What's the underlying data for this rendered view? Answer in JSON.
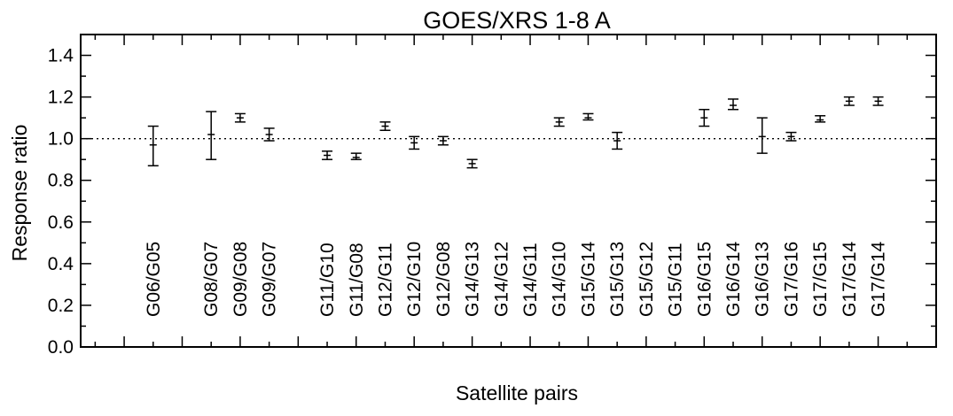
{
  "chart_data": {
    "type": "scatter",
    "title": "GOES/XRS 1-8 A",
    "xlabel": "Satellite pairs",
    "ylabel": "Response ratio",
    "ylim": [
      0.0,
      1.5
    ],
    "yticks": [
      "0.0",
      "0.2",
      "0.4",
      "0.6",
      "0.8",
      "1.0",
      "1.2",
      "1.4"
    ],
    "reference_line": 1.0,
    "grid": false,
    "categories": [
      "G06/G05",
      "G08/G07",
      "G09/G08",
      "G09/G07",
      "G11/G10",
      "G11/G08",
      "G12/G11",
      "G12/G10",
      "G12/G08",
      "G14/G13",
      "G14/G12",
      "G14/G11",
      "G14/G10",
      "G15/G14",
      "G15/G13",
      "G15/G12",
      "G15/G11",
      "G16/G15",
      "G16/G14",
      "G16/G13",
      "G17/G16",
      "G17/G15",
      "G17/G14",
      "G17/G14"
    ],
    "x_slot": [
      1,
      3,
      4,
      5,
      7,
      8,
      9,
      10,
      11,
      12,
      13,
      14,
      15,
      16,
      17,
      18,
      19,
      20,
      21,
      22,
      23,
      24,
      25,
      26
    ],
    "x_range": [
      -1.5,
      28
    ],
    "values": [
      0.97,
      1.02,
      1.1,
      1.02,
      0.92,
      0.91,
      1.06,
      0.98,
      0.99,
      0.88,
      null,
      null,
      1.08,
      1.1,
      0.99,
      null,
      null,
      1.1,
      1.16,
      1.01,
      1.01,
      1.09,
      1.18,
      1.18
    ],
    "error_low": [
      0.87,
      0.9,
      1.08,
      0.99,
      0.9,
      0.9,
      1.04,
      0.95,
      0.97,
      0.86,
      null,
      null,
      1.06,
      1.09,
      0.95,
      null,
      null,
      1.06,
      1.14,
      0.93,
      0.99,
      1.08,
      1.16,
      1.16
    ],
    "error_high": [
      1.06,
      1.13,
      1.12,
      1.05,
      0.94,
      0.93,
      1.08,
      1.01,
      1.01,
      0.9,
      null,
      null,
      1.1,
      1.12,
      1.03,
      null,
      null,
      1.14,
      1.19,
      1.1,
      1.03,
      1.11,
      1.2,
      1.2
    ],
    "colors": {
      "axis": "#000000",
      "marker": "#000000"
    }
  }
}
